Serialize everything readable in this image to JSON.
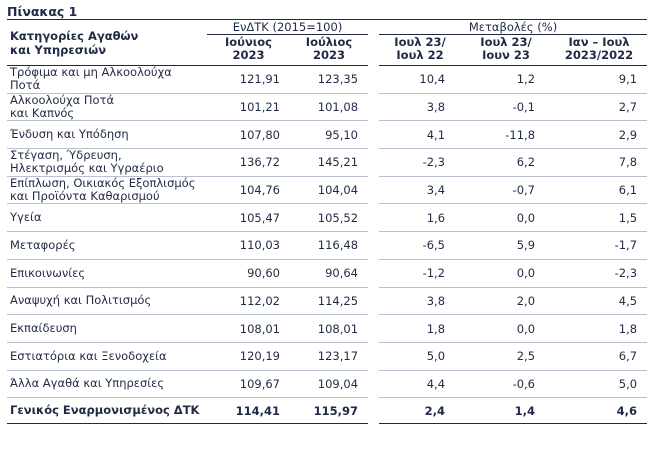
{
  "title": "Πίνακας 1",
  "header": {
    "category_label_1": "Κατηγορίες Αγαθών",
    "category_label_2": "και Υπηρεσιών",
    "cpi_group": "ΕνΔΤΚ (2015=100)",
    "change_group": "Μεταβολές (%)",
    "col_jun_1": "Ιούνιος",
    "col_jun_2": "2023",
    "col_jul_1": "Ιούλιος",
    "col_jul_2": "2023",
    "col_yoy_1": "Ιουλ 23/",
    "col_yoy_2": "Ιουλ 22",
    "col_mom_1": "Ιουλ 23/",
    "col_mom_2": "Ιουν 23",
    "col_ytd_1": "Ιαν – Ιουλ",
    "col_ytd_2": "2023/2022"
  },
  "rows": [
    {
      "name1": "Τρόφιμα και μη Αλκοολούχα",
      "name2": "Ποτά",
      "jun": "121,91",
      "jul": "123,35",
      "yoy": "10,4",
      "mom": "1,2",
      "ytd": "9,1"
    },
    {
      "name1": "Αλκοολούχα Ποτά",
      "name2": "και Καπνός",
      "jun": "101,21",
      "jul": "101,08",
      "yoy": "3,8",
      "mom": "-0,1",
      "ytd": "2,7"
    },
    {
      "name1": "Ένδυση και Υπόδηση",
      "name2": "",
      "jun": "107,80",
      "jul": "95,10",
      "yoy": "4,1",
      "mom": "-11,8",
      "ytd": "2,9"
    },
    {
      "name1": "Στέγαση, Ύδρευση,",
      "name2": "Ηλεκτρισμός και Υγραέριο",
      "jun": "136,72",
      "jul": "145,21",
      "yoy": "-2,3",
      "mom": "6,2",
      "ytd": "7,8"
    },
    {
      "name1": "Επίπλωση, Οικιακός Εξοπλισμός",
      "name2": "και Προϊόντα Καθαρισμού",
      "jun": "104,76",
      "jul": "104,04",
      "yoy": "3,4",
      "mom": "-0,7",
      "ytd": "6,1"
    },
    {
      "name1": "Υγεία",
      "name2": "",
      "jun": "105,47",
      "jul": "105,52",
      "yoy": "1,6",
      "mom": "0,0",
      "ytd": "1,5"
    },
    {
      "name1": "Μεταφορές",
      "name2": "",
      "jun": "110,03",
      "jul": "116,48",
      "yoy": "-6,5",
      "mom": "5,9",
      "ytd": "-1,7"
    },
    {
      "name1": "Επικοινωνίες",
      "name2": "",
      "jun": "90,60",
      "jul": "90,64",
      "yoy": "-1,2",
      "mom": "0,0",
      "ytd": "-2,3"
    },
    {
      "name1": "Αναψυχή και Πολιτισμός",
      "name2": "",
      "jun": "112,02",
      "jul": "114,25",
      "yoy": "3,8",
      "mom": "2,0",
      "ytd": "4,5"
    },
    {
      "name1": "Εκπαίδευση",
      "name2": "",
      "jun": "108,01",
      "jul": "108,01",
      "yoy": "1,8",
      "mom": "0,0",
      "ytd": "1,8"
    },
    {
      "name1": "Εστιατόρια και Ξενοδοχεία",
      "name2": "",
      "jun": "120,19",
      "jul": "123,17",
      "yoy": "5,0",
      "mom": "2,5",
      "ytd": "6,7"
    },
    {
      "name1": "Άλλα Αγαθά και Υπηρεσίες",
      "name2": "",
      "jun": "109,67",
      "jul": "109,04",
      "yoy": "4,4",
      "mom": "-0,6",
      "ytd": "5,0"
    }
  ],
  "total": {
    "name": "Γενικός Εναρμονισμένος ΔΤΚ",
    "jun": "114,41",
    "jul": "115,97",
    "yoy": "2,4",
    "mom": "1,4",
    "ytd": "4,6"
  }
}
